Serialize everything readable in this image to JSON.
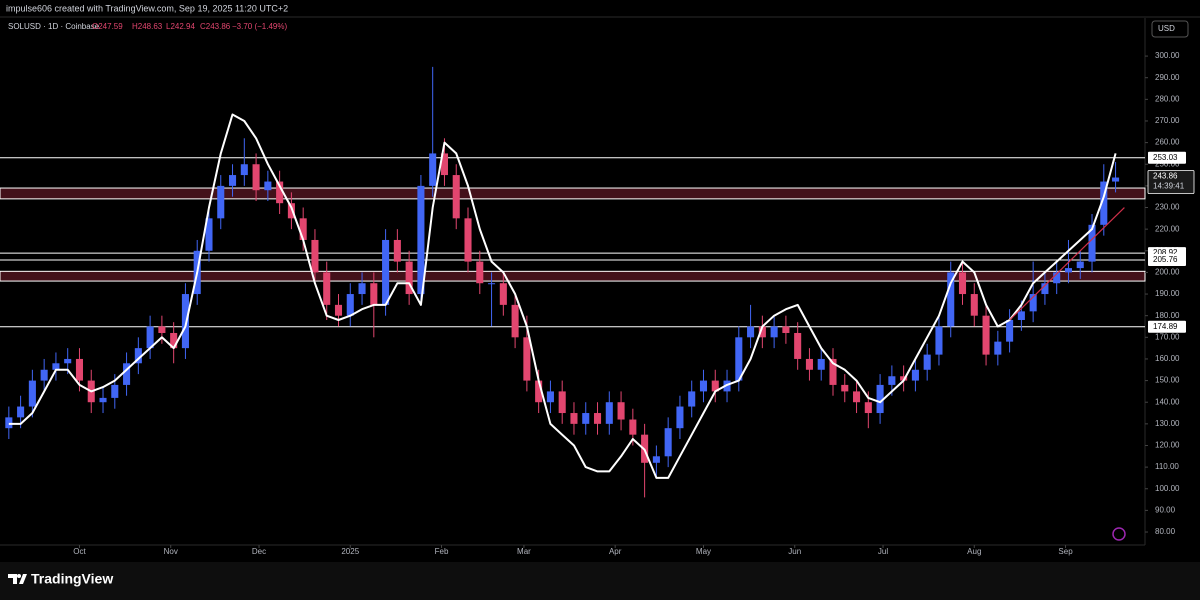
{
  "header": {
    "creator": "impulse606 created with TradingView.com, Sep 19, 2025 11:20 UTC+2",
    "symbol": "SOLUSD · 1D · Coinbase",
    "ohlc": [
      "O247.59",
      "H248.63",
      "L242.94",
      "C243.86"
    ],
    "change": "−3.70 (−1.49%)"
  },
  "currency": "USD",
  "footer": {
    "brand": "TradingView"
  },
  "chart_data": {
    "type": "candlestick",
    "up_color": "#4166f5",
    "down_color": "#e2466f",
    "ma_color": "#ffffff",
    "x": [
      0,
      4,
      8,
      12,
      16,
      20,
      24,
      28,
      32,
      36,
      40,
      44,
      48,
      52,
      56,
      60,
      64,
      68,
      72,
      76,
      80,
      84,
      88,
      92,
      96,
      100,
      104,
      108,
      112,
      116,
      120,
      124,
      128,
      132,
      136,
      140,
      144,
      148,
      152,
      156,
      160,
      164,
      168,
      172,
      176,
      180,
      184,
      188,
      192,
      196,
      200,
      204,
      208,
      212,
      216,
      220,
      224,
      228,
      232,
      236,
      240,
      244,
      248,
      252,
      256,
      260,
      264,
      268,
      272,
      276,
      280,
      284,
      288,
      292,
      296,
      300,
      304,
      308,
      312,
      316,
      320,
      324,
      328,
      332,
      336,
      340,
      344,
      348,
      352,
      356,
      360,
      364,
      368,
      372,
      376
    ],
    "open": [
      128,
      133,
      138,
      150,
      155,
      158,
      160,
      150,
      140,
      142,
      148,
      158,
      165,
      175,
      172,
      165,
      190,
      210,
      225,
      240,
      245,
      250,
      238,
      242,
      232,
      225,
      215,
      200,
      185,
      180,
      190,
      195,
      185,
      215,
      205,
      190,
      240,
      255,
      245,
      225,
      205,
      195,
      195,
      185,
      170,
      150,
      140,
      145,
      135,
      130,
      135,
      130,
      140,
      132,
      125,
      112,
      115,
      128,
      138,
      145,
      150,
      145,
      150,
      170,
      175,
      170,
      175,
      172,
      160,
      155,
      160,
      148,
      145,
      140,
      135,
      148,
      152,
      150,
      155,
      162,
      175,
      200,
      190,
      180,
      162,
      168,
      178,
      182,
      190,
      195,
      200,
      202,
      205,
      222,
      242
    ],
    "high": [
      138,
      143,
      155,
      160,
      163,
      165,
      165,
      155,
      147,
      153,
      163,
      170,
      180,
      180,
      177,
      195,
      215,
      230,
      245,
      250,
      262,
      255,
      247,
      247,
      237,
      230,
      220,
      205,
      190,
      195,
      200,
      200,
      220,
      220,
      210,
      245,
      295,
      262,
      250,
      230,
      210,
      200,
      200,
      190,
      180,
      155,
      150,
      150,
      140,
      140,
      140,
      145,
      145,
      137,
      130,
      120,
      133,
      143,
      150,
      155,
      155,
      155,
      175,
      185,
      180,
      180,
      180,
      177,
      165,
      165,
      165,
      153,
      150,
      145,
      153,
      157,
      157,
      160,
      167,
      180,
      205,
      205,
      195,
      185,
      173,
      183,
      187,
      205,
      200,
      205,
      215,
      210,
      227,
      250,
      251
    ],
    "low": [
      123,
      128,
      133,
      145,
      150,
      153,
      145,
      135,
      135,
      137,
      143,
      153,
      160,
      167,
      158,
      160,
      185,
      205,
      220,
      235,
      240,
      233,
      233,
      227,
      220,
      210,
      195,
      178,
      175,
      175,
      185,
      170,
      180,
      200,
      185,
      185,
      235,
      240,
      220,
      200,
      190,
      175,
      180,
      165,
      145,
      135,
      135,
      130,
      125,
      125,
      125,
      125,
      127,
      120,
      96,
      105,
      110,
      123,
      133,
      140,
      140,
      140,
      145,
      165,
      165,
      165,
      167,
      155,
      150,
      150,
      143,
      140,
      135,
      128,
      130,
      143,
      145,
      145,
      150,
      157,
      170,
      185,
      175,
      157,
      157,
      163,
      173,
      177,
      185,
      190,
      195,
      197,
      200,
      217,
      237
    ],
    "close": [
      133,
      138,
      150,
      155,
      158,
      160,
      150,
      140,
      142,
      148,
      158,
      165,
      175,
      172,
      165,
      190,
      210,
      225,
      240,
      245,
      250,
      238,
      242,
      232,
      225,
      215,
      200,
      185,
      180,
      190,
      195,
      185,
      215,
      205,
      190,
      240,
      255,
      245,
      225,
      205,
      195,
      195,
      185,
      170,
      150,
      140,
      145,
      135,
      130,
      135,
      130,
      140,
      132,
      125,
      112,
      115,
      128,
      138,
      145,
      150,
      145,
      150,
      170,
      175,
      170,
      175,
      172,
      160,
      155,
      160,
      148,
      145,
      140,
      135,
      148,
      152,
      150,
      155,
      162,
      175,
      200,
      190,
      180,
      162,
      168,
      178,
      182,
      190,
      195,
      200,
      202,
      205,
      222,
      242,
      243.86
    ],
    "ma_values": [
      130,
      130,
      135,
      145,
      155,
      155,
      148,
      145,
      147,
      150,
      155,
      160,
      165,
      170,
      165,
      175,
      200,
      230,
      255,
      273,
      270,
      262,
      250,
      240,
      230,
      215,
      195,
      180,
      178,
      180,
      183,
      185,
      185,
      195,
      195,
      185,
      230,
      260,
      255,
      240,
      220,
      205,
      200,
      190,
      175,
      150,
      130,
      125,
      120,
      110,
      108,
      108,
      115,
      123,
      118,
      105,
      105,
      115,
      125,
      135,
      145,
      148,
      150,
      160,
      175,
      180,
      183,
      185,
      175,
      165,
      158,
      155,
      150,
      142,
      140,
      145,
      150,
      160,
      170,
      180,
      195,
      205,
      200,
      185,
      175,
      178,
      185,
      195,
      200,
      205,
      210,
      215,
      220,
      235,
      255
    ],
    "levels": [
      253.03,
      208.92,
      205.76,
      174.89
    ],
    "zones": [
      [
        234,
        239
      ],
      [
        196,
        200.5
      ]
    ],
    "zone_color": "#c0304a",
    "trendline": {
      "x": [
        340,
        379
      ],
      "y": [
        178,
        230
      ],
      "color": "#d0304a"
    },
    "last_price": 243.86,
    "countdown": "14:39:41",
    "xlim": [
      -3,
      386
    ],
    "ylim": [
      74,
      317.6
    ],
    "xticks": [
      {
        "value": 24,
        "label": "Oct"
      },
      {
        "value": 55,
        "label": "Nov"
      },
      {
        "value": 85,
        "label": "Dec"
      },
      {
        "value": 116,
        "label": "2025"
      },
      {
        "value": 147,
        "label": "Feb"
      },
      {
        "value": 175,
        "label": "Mar"
      },
      {
        "value": 206,
        "label": "Apr"
      },
      {
        "value": 236,
        "label": "May"
      },
      {
        "value": 267,
        "label": "Jun"
      },
      {
        "value": 297,
        "label": "Jul"
      },
      {
        "value": 328,
        "label": "Aug"
      },
      {
        "value": 359,
        "label": "Sep"
      }
    ],
    "yticks": [
      {
        "value": 80,
        "label": "80.00"
      },
      {
        "value": 90,
        "label": "90.00"
      },
      {
        "value": 100,
        "label": "100.00"
      },
      {
        "value": 110,
        "label": "110.00"
      },
      {
        "value": 120,
        "label": "120.00"
      },
      {
        "value": 130,
        "label": "130.00"
      },
      {
        "value": 140,
        "label": "140.00"
      },
      {
        "value": 150,
        "label": "150.00"
      },
      {
        "value": 160,
        "label": "160.00"
      },
      {
        "value": 170,
        "label": "170.00"
      },
      {
        "value": 180,
        "label": "180.00"
      },
      {
        "value": 190,
        "label": "190.00"
      },
      {
        "value": 200,
        "label": "200.00"
      },
      {
        "value": 210,
        "label": "210.00"
      },
      {
        "value": 220,
        "label": "220.00"
      },
      {
        "value": 230,
        "label": "230.00"
      },
      {
        "value": 240,
        "label": "240.00"
      },
      {
        "value": 250,
        "label": "250.00"
      },
      {
        "value": 260,
        "label": "260.00"
      },
      {
        "value": 270,
        "label": "270.00"
      },
      {
        "value": 280,
        "label": "280.00"
      },
      {
        "value": 290,
        "label": "290.00"
      },
      {
        "value": 300,
        "label": "300.00"
      }
    ]
  }
}
